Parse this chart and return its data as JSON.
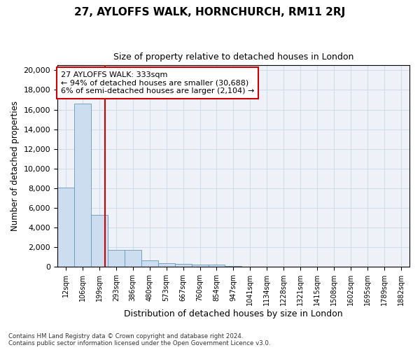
{
  "title": "27, AYLOFFS WALK, HORNCHURCH, RM11 2RJ",
  "subtitle": "Size of property relative to detached houses in London",
  "xlabel": "Distribution of detached houses by size in London",
  "ylabel": "Number of detached properties",
  "bin_labels": [
    "12sqm",
    "106sqm",
    "199sqm",
    "293sqm",
    "386sqm",
    "480sqm",
    "573sqm",
    "667sqm",
    "760sqm",
    "854sqm",
    "947sqm",
    "1041sqm",
    "1134sqm",
    "1228sqm",
    "1321sqm",
    "1415sqm",
    "1508sqm",
    "1602sqm",
    "1695sqm",
    "1789sqm",
    "1882sqm"
  ],
  "bar_heights": [
    8050,
    16600,
    5250,
    1750,
    1750,
    680,
    360,
    270,
    200,
    200,
    120,
    0,
    0,
    0,
    0,
    0,
    0,
    0,
    0,
    0,
    0
  ],
  "bar_color": "#ccddf0",
  "bar_edge_color": "#6699bb",
  "vline_x_index": 2.35,
  "vline_color": "#cc0000",
  "annotation_line1": "27 AYLOFFS WALK: 333sqm",
  "annotation_line2": "← 94% of detached houses are smaller (30,688)",
  "annotation_line3": "6% of semi-detached houses are larger (2,104) →",
  "annotation_box_color": "#ffffff",
  "annotation_box_edge": "#cc0000",
  "ylim": [
    0,
    20500
  ],
  "yticks": [
    0,
    2000,
    4000,
    6000,
    8000,
    10000,
    12000,
    14000,
    16000,
    18000,
    20000
  ],
  "grid_color": "#d0dce8",
  "footnote": "Contains HM Land Registry data © Crown copyright and database right 2024.\nContains public sector information licensed under the Open Government Licence v3.0.",
  "bg_color": "#ffffff",
  "plot_bg_color": "#eef2f8"
}
